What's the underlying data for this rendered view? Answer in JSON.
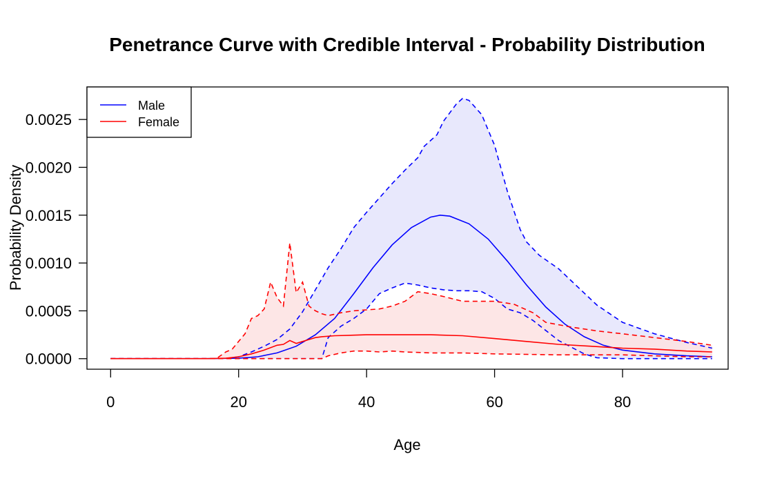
{
  "chart_data": {
    "type": "line",
    "title": "Penetrance Curve with Credible Interval - Probability Distribution",
    "xlabel": "Age",
    "ylabel": "Probability Density",
    "xlim": [
      -3.7,
      96.5
    ],
    "ylim": [
      -0.00011,
      0.00284
    ],
    "x_ticks": [
      0,
      20,
      40,
      60,
      80
    ],
    "x_tick_labels": [
      "0",
      "20",
      "40",
      "60",
      "80"
    ],
    "y_ticks": [
      0,
      0.0005,
      0.001,
      0.0015,
      0.002,
      0.0025
    ],
    "y_tick_labels": [
      "0.0000",
      "0.0005",
      "0.0010",
      "0.0015",
      "0.0020",
      "0.0025"
    ],
    "grid": false,
    "legend": {
      "position": "top-left",
      "entries": [
        {
          "label": "Male",
          "color": "#0000ff"
        },
        {
          "label": "Female",
          "color": "#ff0000"
        }
      ]
    },
    "series": [
      {
        "name": "Male",
        "color": "#0000ff",
        "fill_color": "#e4e4fc",
        "line": {
          "x": [
            0,
            15,
            20,
            23,
            26,
            29,
            32,
            35,
            38,
            41,
            44,
            47,
            50,
            51.5,
            53,
            56,
            59,
            62,
            65,
            68,
            71,
            74,
            77,
            80,
            85,
            90,
            94
          ],
          "y": [
            0,
            0,
            5e-06,
            2e-05,
            6e-05,
            0.00013,
            0.00025,
            0.00042,
            0.00068,
            0.00095,
            0.00119,
            0.00137,
            0.00148,
            0.0015,
            0.00149,
            0.00141,
            0.00125,
            0.00102,
            0.00077,
            0.00054,
            0.00036,
            0.00023,
            0.00014,
            9e-05,
            5e-05,
            3e-05,
            2e-05
          ]
        },
        "upper": {
          "x": [
            0,
            18,
            20,
            22,
            24,
            26,
            28,
            30,
            32,
            34,
            36,
            38,
            40,
            42,
            44,
            46,
            48,
            49,
            50,
            51,
            52,
            54,
            55,
            56,
            58,
            60,
            62,
            64,
            65,
            67,
            70,
            73,
            76,
            80,
            85,
            90,
            94
          ],
          "y": [
            0,
            0,
            2e-05,
            7e-05,
            0.00013,
            0.0002,
            0.00031,
            0.00049,
            0.00072,
            0.00095,
            0.00115,
            0.00137,
            0.00153,
            0.00168,
            0.00183,
            0.00197,
            0.0021,
            0.00222,
            0.00228,
            0.00234,
            0.00248,
            0.00266,
            0.00272,
            0.0027,
            0.00255,
            0.00223,
            0.00175,
            0.00135,
            0.00122,
            0.00108,
            0.00094,
            0.00075,
            0.00056,
            0.00038,
            0.00026,
            0.00017,
            0.00011
          ]
        },
        "lower": {
          "x": [
            0,
            33,
            34,
            36,
            38,
            40,
            42,
            44,
            46,
            48,
            50,
            52,
            54,
            56,
            58,
            60,
            62,
            64,
            66,
            70,
            74,
            76,
            80,
            85,
            90,
            94
          ],
          "y": [
            0,
            0,
            0.00022,
            0.00034,
            0.00042,
            0.00052,
            0.00068,
            0.00074,
            0.00079,
            0.00077,
            0.00074,
            0.00072,
            0.00071,
            0.00071,
            0.0007,
            0.00063,
            0.00052,
            0.00048,
            0.0004,
            0.00019,
            5e-05,
            1e-05,
            0.0,
            0.0,
            0.0,
            0.0
          ]
        }
      },
      {
        "name": "Female",
        "color": "#ff0000",
        "fill_color": "#fde2e2",
        "line": {
          "x": [
            0,
            15,
            18,
            20,
            22,
            24,
            26,
            27,
            28,
            29,
            30,
            31,
            32,
            33,
            35,
            40,
            45,
            50,
            55,
            60,
            65,
            70,
            75,
            80,
            85,
            90,
            94
          ],
          "y": [
            0,
            0,
            5e-06,
            2e-05,
            5e-05,
            9e-05,
            0.00014,
            0.00015,
            0.00019,
            0.00016,
            0.00018,
            0.0002,
            0.00022,
            0.00023,
            0.00024,
            0.00025,
            0.00025,
            0.00025,
            0.00024,
            0.00021,
            0.00018,
            0.00015,
            0.00013,
            0.00011,
            0.0001,
            8e-05,
            7e-05
          ]
        },
        "upper": {
          "x": [
            0,
            16.5,
            18,
            19,
            20,
            21,
            22,
            23,
            24,
            25,
            26,
            27,
            28,
            29,
            30,
            31,
            32,
            33,
            34,
            36,
            38,
            40,
            42,
            44,
            46,
            48,
            50,
            52,
            55,
            60,
            63,
            66,
            68,
            72,
            76,
            80,
            85,
            90,
            94
          ],
          "y": [
            0,
            0,
            7e-05,
            0.0001,
            0.00018,
            0.00026,
            0.00042,
            0.00045,
            0.00052,
            0.0008,
            0.00064,
            0.00055,
            0.00121,
            0.00069,
            0.0008,
            0.00055,
            0.0005,
            0.00047,
            0.00045,
            0.00048,
            0.0005,
            0.00051,
            0.00052,
            0.00055,
            0.0006,
            0.0007,
            0.00068,
            0.00065,
            0.0006,
            0.0006,
            0.00057,
            0.00048,
            0.00038,
            0.00033,
            0.00029,
            0.00026,
            0.00022,
            0.00018,
            0.00014
          ]
        },
        "lower": {
          "x": [
            0,
            33,
            34,
            36,
            38,
            40,
            42,
            44,
            46,
            50,
            55,
            60,
            70,
            80,
            85,
            90,
            94
          ],
          "y": [
            0,
            0,
            3e-05,
            6e-05,
            8e-05,
            8e-05,
            7e-05,
            8e-05,
            7e-05,
            6e-05,
            6e-05,
            5e-05,
            4e-05,
            4e-05,
            3e-05,
            2e-05,
            2e-05
          ]
        }
      }
    ]
  }
}
